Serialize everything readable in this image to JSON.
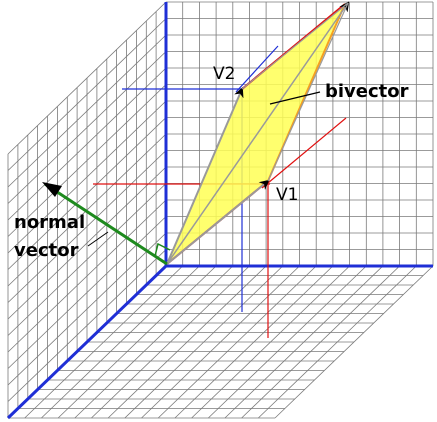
{
  "labels": {
    "v1": "V1",
    "v2": "V2",
    "bivector": "bivector",
    "normal_line1": "normal",
    "normal_line2": "vector"
  },
  "colors": {
    "grid": "#7a7a7a",
    "axis": "#1f2fd6",
    "v1_projection": "#e01010",
    "v2_projection": "#1f2fd6",
    "vector": "#9a9a9a",
    "parallelogram_fill": "#ffff55",
    "parallelogram_edge": "#e01010",
    "normal_vector": "#1e8a1e",
    "right_angle_mark": "#1e8a1e"
  }
}
